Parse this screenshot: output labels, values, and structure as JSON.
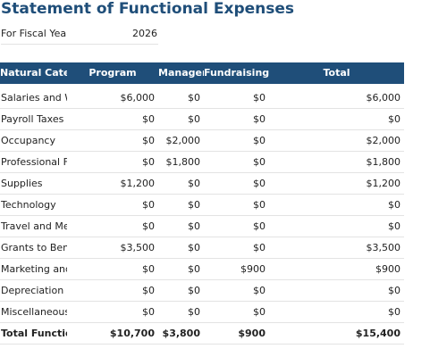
{
  "header": {
    "title": "Statement of Functional Expenses",
    "fiscal_label": "For Fiscal Year",
    "fiscal_value": "2026"
  },
  "table": {
    "columns": [
      "Natural Category",
      "Program",
      "Management",
      "Fundraising",
      "Total"
    ],
    "rows": [
      [
        "Salaries and Wages",
        "$6,000",
        "$0",
        "$0",
        "$6,000"
      ],
      [
        "Payroll Taxes and Benefits",
        "$0",
        "$0",
        "$0",
        "$0"
      ],
      [
        "Occupancy",
        "$0",
        "$2,000",
        "$0",
        "$2,000"
      ],
      [
        "Professional Fees",
        "$0",
        "$1,800",
        "$0",
        "$1,800"
      ],
      [
        "Supplies",
        "$1,200",
        "$0",
        "$0",
        "$1,200"
      ],
      [
        "Technology",
        "$0",
        "$0",
        "$0",
        "$0"
      ],
      [
        "Travel and Meetings",
        "$0",
        "$0",
        "$0",
        "$0"
      ],
      [
        "Grants to Beneficiaries",
        "$3,500",
        "$0",
        "$0",
        "$3,500"
      ],
      [
        "Marketing and Outreach",
        "$0",
        "$0",
        "$900",
        "$900"
      ],
      [
        "Depreciation",
        "$0",
        "$0",
        "$0",
        "$0"
      ],
      [
        "Miscellaneous",
        "$0",
        "$0",
        "$0",
        "$0"
      ]
    ],
    "total": [
      "Total Functional Expenses",
      "$10,700",
      "$3,800",
      "$900",
      "$15,400"
    ]
  }
}
